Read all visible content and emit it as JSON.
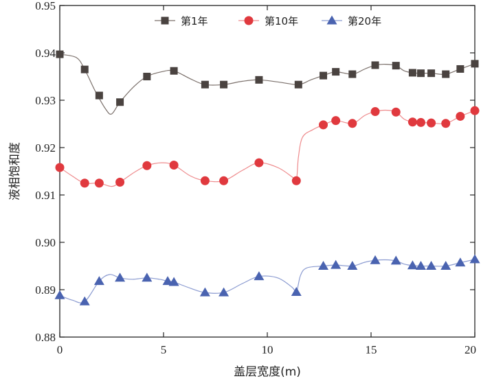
{
  "chart_data": {
    "type": "line",
    "xlabel": "盖层宽度(m)",
    "ylabel": "液相饱和度",
    "xlim": [
      0,
      20
    ],
    "ylim": [
      0.88,
      0.95
    ],
    "xticks": [
      0,
      5,
      10,
      15,
      20
    ],
    "yticks": [
      0.88,
      0.89,
      0.9,
      0.91,
      0.92,
      0.93,
      0.94,
      0.95
    ],
    "ytick_labels": [
      "0.88",
      "0.89",
      "0.90",
      "0.91",
      "0.92",
      "0.93",
      "0.94",
      "0.95"
    ],
    "grid": false,
    "legend_position": "top-center",
    "series": [
      {
        "name": "第1年",
        "marker": "square",
        "marker_color": "#4a4340",
        "line_color": "#7a6f6a",
        "x": [
          0,
          1.2,
          1.9,
          2.9,
          4.2,
          5.5,
          7.0,
          7.9,
          9.6,
          11.5,
          12.7,
          13.3,
          14.1,
          15.2,
          16.2,
          17.0,
          17.4,
          17.9,
          18.6,
          19.3,
          20.0
        ],
        "y": [
          0.9397,
          0.9365,
          0.931,
          0.9296,
          0.935,
          0.9362,
          0.9333,
          0.9333,
          0.9343,
          0.9333,
          0.9352,
          0.936,
          0.9355,
          0.9374,
          0.9373,
          0.9358,
          0.9357,
          0.9357,
          0.9355,
          0.9366,
          0.9377
        ],
        "curve": [
          [
            0,
            0.9397
          ],
          [
            0.8,
            0.939
          ],
          [
            1.2,
            0.9365
          ],
          [
            1.7,
            0.932
          ],
          [
            2.2,
            0.9282
          ],
          [
            2.5,
            0.9271
          ],
          [
            2.9,
            0.9296
          ],
          [
            3.6,
            0.933
          ],
          [
            4.2,
            0.935
          ],
          [
            4.9,
            0.936
          ],
          [
            5.5,
            0.9362
          ],
          [
            6.3,
            0.9345
          ],
          [
            7.0,
            0.9333
          ],
          [
            7.9,
            0.9333
          ],
          [
            8.8,
            0.934
          ],
          [
            9.6,
            0.9343
          ],
          [
            10.6,
            0.9338
          ],
          [
            11.5,
            0.9333
          ],
          [
            12.1,
            0.9343
          ],
          [
            12.7,
            0.9352
          ],
          [
            13.3,
            0.936
          ],
          [
            14.1,
            0.9355
          ],
          [
            14.7,
            0.9366
          ],
          [
            15.2,
            0.9374
          ],
          [
            15.7,
            0.9376
          ],
          [
            16.2,
            0.9373
          ],
          [
            16.6,
            0.9362
          ],
          [
            17.0,
            0.9358
          ],
          [
            17.4,
            0.9357
          ],
          [
            17.9,
            0.9357
          ],
          [
            18.6,
            0.9355
          ],
          [
            19.3,
            0.9366
          ],
          [
            20.0,
            0.9377
          ]
        ]
      },
      {
        "name": "第10年",
        "marker": "circle",
        "marker_color": "#e0393e",
        "line_color": "#ee8a8c",
        "x": [
          0,
          1.2,
          1.9,
          2.9,
          4.2,
          5.5,
          7.0,
          7.9,
          9.6,
          11.4,
          12.7,
          13.3,
          14.1,
          15.2,
          16.2,
          17.0,
          17.4,
          17.9,
          18.6,
          19.3,
          20.0
        ],
        "y": [
          0.9158,
          0.9125,
          0.9125,
          0.9127,
          0.9162,
          0.9163,
          0.913,
          0.913,
          0.9168,
          0.913,
          0.9248,
          0.9257,
          0.9251,
          0.9276,
          0.9275,
          0.9254,
          0.9253,
          0.9252,
          0.9251,
          0.9266,
          0.9278
        ],
        "curve": [
          [
            0,
            0.9158
          ],
          [
            0.6,
            0.914
          ],
          [
            1.2,
            0.9125
          ],
          [
            1.9,
            0.9125
          ],
          [
            2.5,
            0.9118
          ],
          [
            2.9,
            0.9127
          ],
          [
            3.6,
            0.9148
          ],
          [
            4.2,
            0.9162
          ],
          [
            4.9,
            0.9168
          ],
          [
            5.5,
            0.9163
          ],
          [
            6.3,
            0.914
          ],
          [
            7.0,
            0.913
          ],
          [
            7.9,
            0.913
          ],
          [
            8.8,
            0.9152
          ],
          [
            9.6,
            0.9168
          ],
          [
            10.5,
            0.9158
          ],
          [
            11.2,
            0.9138
          ],
          [
            11.4,
            0.913
          ],
          [
            11.5,
            0.918
          ],
          [
            11.7,
            0.9222
          ],
          [
            12.2,
            0.9238
          ],
          [
            12.7,
            0.9248
          ],
          [
            13.3,
            0.9257
          ],
          [
            14.1,
            0.9251
          ],
          [
            14.7,
            0.9268
          ],
          [
            15.2,
            0.9276
          ],
          [
            15.7,
            0.9279
          ],
          [
            16.2,
            0.9275
          ],
          [
            16.6,
            0.926
          ],
          [
            17.0,
            0.9254
          ],
          [
            17.4,
            0.9253
          ],
          [
            17.9,
            0.9252
          ],
          [
            18.6,
            0.9251
          ],
          [
            19.3,
            0.9266
          ],
          [
            20.0,
            0.9278
          ]
        ]
      },
      {
        "name": "第20年",
        "marker": "triangle",
        "marker_color": "#4a63b0",
        "line_color": "#8a9ad0",
        "x": [
          0,
          1.2,
          1.9,
          2.9,
          4.2,
          5.2,
          5.5,
          7.0,
          7.9,
          9.6,
          11.4,
          12.7,
          13.3,
          14.1,
          15.2,
          16.2,
          17.0,
          17.4,
          17.9,
          18.6,
          19.3,
          20.0
        ],
        "y": [
          0.8888,
          0.8875,
          0.8918,
          0.8925,
          0.8925,
          0.8918,
          0.8916,
          0.8894,
          0.8894,
          0.8928,
          0.8895,
          0.895,
          0.8952,
          0.895,
          0.8962,
          0.8961,
          0.8951,
          0.895,
          0.895,
          0.895,
          0.8957,
          0.8964
        ],
        "curve": [
          [
            0,
            0.8888
          ],
          [
            0.6,
            0.8878
          ],
          [
            1.2,
            0.8875
          ],
          [
            1.9,
            0.8918
          ],
          [
            2.4,
            0.8932
          ],
          [
            2.9,
            0.8925
          ],
          [
            3.5,
            0.8922
          ],
          [
            4.2,
            0.8925
          ],
          [
            4.8,
            0.8922
          ],
          [
            5.2,
            0.8918
          ],
          [
            5.5,
            0.8916
          ],
          [
            6.3,
            0.8903
          ],
          [
            7.0,
            0.8894
          ],
          [
            7.9,
            0.8894
          ],
          [
            8.8,
            0.8913
          ],
          [
            9.6,
            0.8928
          ],
          [
            10.5,
            0.8925
          ],
          [
            11.2,
            0.8905
          ],
          [
            11.4,
            0.8895
          ],
          [
            11.6,
            0.893
          ],
          [
            11.9,
            0.8946
          ],
          [
            12.7,
            0.895
          ],
          [
            13.3,
            0.8952
          ],
          [
            14.1,
            0.895
          ],
          [
            14.7,
            0.8958
          ],
          [
            15.2,
            0.8962
          ],
          [
            15.7,
            0.8963
          ],
          [
            16.2,
            0.8961
          ],
          [
            16.6,
            0.8954
          ],
          [
            17.0,
            0.8951
          ],
          [
            17.4,
            0.895
          ],
          [
            17.9,
            0.895
          ],
          [
            18.6,
            0.895
          ],
          [
            19.3,
            0.8957
          ],
          [
            20.0,
            0.8964
          ]
        ]
      }
    ]
  }
}
